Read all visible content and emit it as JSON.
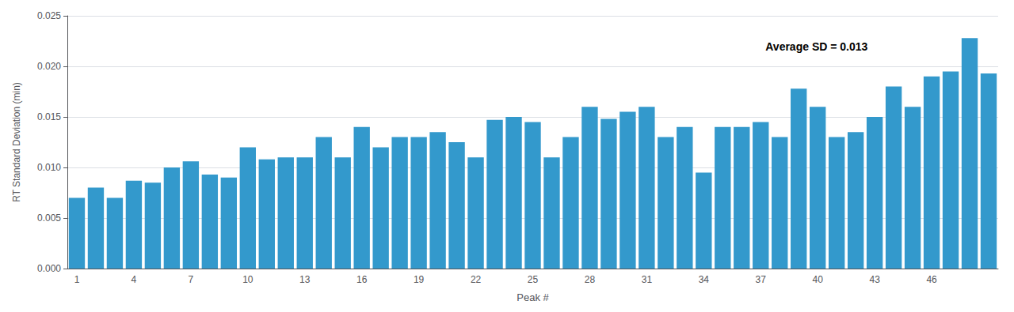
{
  "chart_data": {
    "type": "bar",
    "categories": [
      "1",
      null,
      null,
      "4",
      null,
      null,
      "7",
      null,
      null,
      "10",
      null,
      null,
      "13",
      null,
      null,
      "16",
      null,
      null,
      "19",
      null,
      null,
      "22",
      null,
      null,
      "25",
      null,
      null,
      "28",
      null,
      null,
      "31",
      null,
      null,
      "34",
      null,
      null,
      "37",
      null,
      null,
      "40",
      null,
      null,
      "43",
      null,
      null,
      "46",
      null,
      null,
      null
    ],
    "values": [
      0.007,
      0.008,
      0.007,
      0.0087,
      0.0085,
      0.01,
      0.0106,
      0.0093,
      0.009,
      0.012,
      0.0108,
      0.011,
      0.011,
      0.013,
      0.011,
      0.014,
      0.012,
      0.013,
      0.013,
      0.0135,
      0.0125,
      0.011,
      0.0147,
      0.015,
      0.0145,
      0.011,
      0.013,
      0.016,
      0.0148,
      0.0155,
      0.016,
      0.013,
      0.014,
      0.0095,
      0.014,
      0.014,
      0.0145,
      0.013,
      0.0178,
      0.016,
      0.013,
      0.0135,
      0.015,
      0.018,
      0.016,
      0.019,
      0.0195,
      0.0228,
      0.0193
    ],
    "color": "#3399CC",
    "xlabel": "Peak #",
    "ylabel": "RT Standard Deviation (min)",
    "annotation": "Average SD = 0.013",
    "ylim": [
      0.0,
      0.025
    ],
    "yticks": [
      {
        "value": 0.0,
        "label": "0.000"
      },
      0.005,
      {
        "value": 0.01,
        "label": "0.010"
      },
      0.015,
      {
        "value": 0.02,
        "label": "0.020"
      },
      0.025
    ],
    "grid": true
  }
}
